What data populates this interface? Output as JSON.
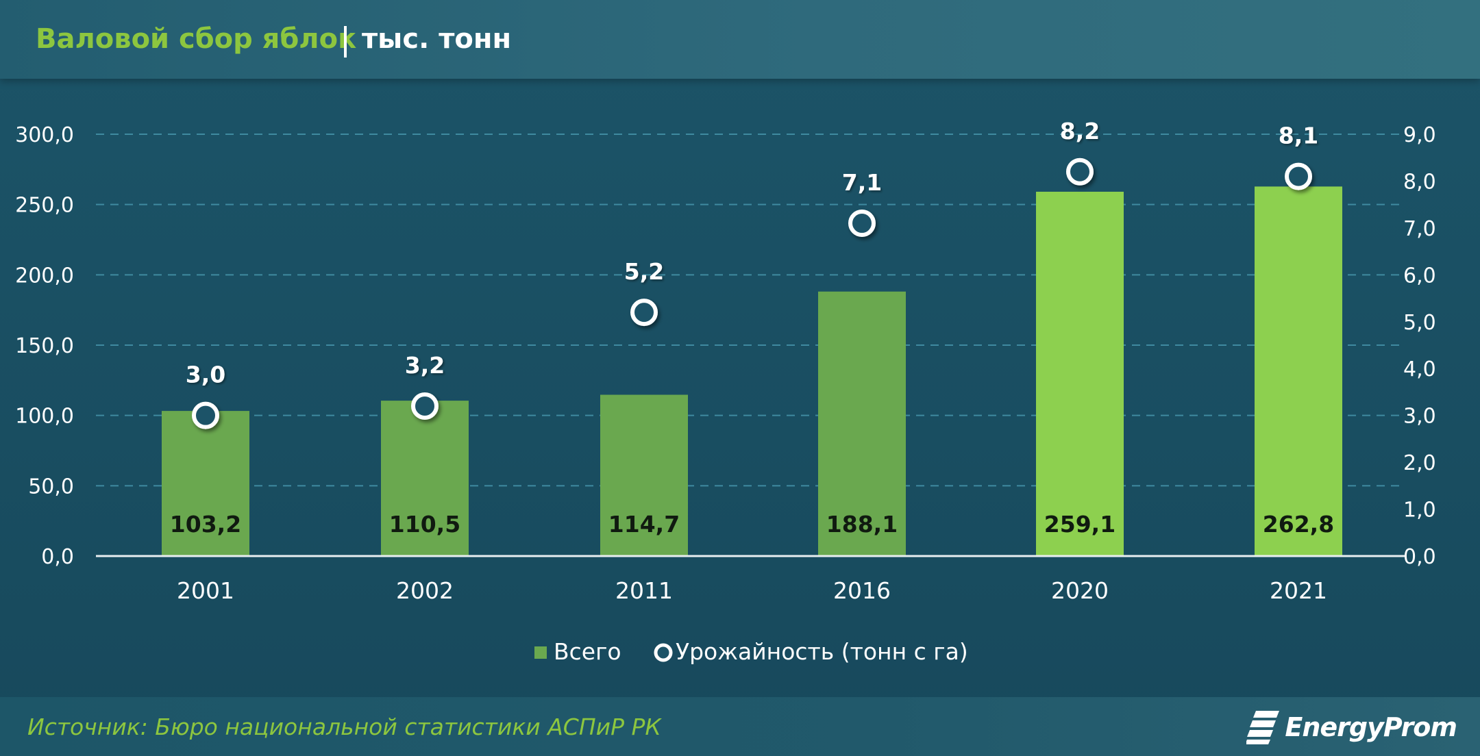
{
  "header": {
    "title": "Валовой сбор яблок",
    "unit": "тыс. тонн"
  },
  "footer": {
    "source": "Источник: Бюро национальной статистики АСПиР РК",
    "logo_text": "EnergyProm"
  },
  "colors": {
    "bar_dark": "#6aa84f",
    "bar_light": "#8dd04f",
    "title_green": "#8dc63f",
    "background": "#1b5266",
    "grid": "#3f8aa0"
  },
  "chart_data": {
    "type": "bar",
    "categories": [
      "2001",
      "2002",
      "2011",
      "2016",
      "2020",
      "2021"
    ],
    "series": [
      {
        "name": "Всего",
        "type": "bar",
        "axis": "left",
        "values": [
          103.2,
          110.5,
          114.7,
          188.1,
          259.1,
          262.8
        ],
        "labels": [
          "103,2",
          "110,5",
          "114,7",
          "188,1",
          "259,1",
          "262,8"
        ]
      },
      {
        "name": "Урожайность (тонн с га)",
        "type": "scatter",
        "axis": "right",
        "values": [
          3.0,
          3.2,
          5.2,
          7.1,
          8.2,
          8.1
        ],
        "labels": [
          "3,0",
          "3,2",
          "5,2",
          "7,1",
          "8,2",
          "8,1"
        ]
      }
    ],
    "y_left": {
      "range": [
        0,
        300
      ],
      "ticks": [
        "0,0",
        "50,0",
        "100,0",
        "150,0",
        "200,0",
        "250,0",
        "300,0"
      ]
    },
    "y_right": {
      "range": [
        0,
        9
      ],
      "ticks": [
        "0,0",
        "1,0",
        "2,0",
        "3,0",
        "4,0",
        "5,0",
        "6,0",
        "7,0",
        "8,0",
        "9,0"
      ]
    },
    "grid": true,
    "legend": "bottom"
  }
}
